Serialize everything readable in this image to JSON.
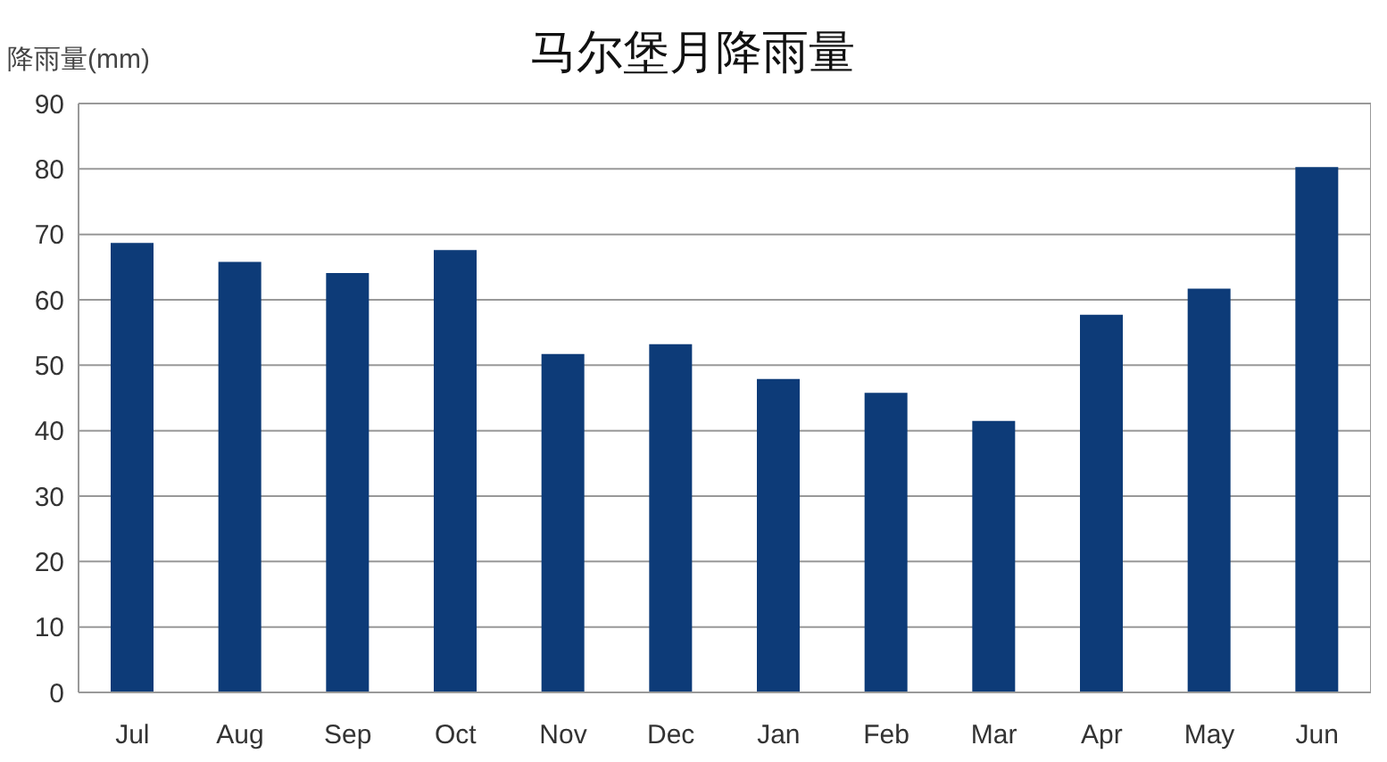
{
  "chart_data": {
    "type": "bar",
    "title": "马尔堡月降雨量",
    "ylabel": "降雨量(mm)",
    "categories": [
      "Jul",
      "Aug",
      "Sep",
      "Oct",
      "Nov",
      "Dec",
      "Jan",
      "Feb",
      "Mar",
      "Apr",
      "May",
      "Jun"
    ],
    "values": [
      68.7,
      65.8,
      64.1,
      67.6,
      51.7,
      53.2,
      47.9,
      45.8,
      41.5,
      57.7,
      61.7,
      80.3
    ],
    "color": "#0d3b78",
    "ylim": [
      0,
      90
    ],
    "yticks": [
      0,
      10,
      20,
      30,
      40,
      50,
      60,
      70,
      80,
      90
    ],
    "grid": "y"
  }
}
